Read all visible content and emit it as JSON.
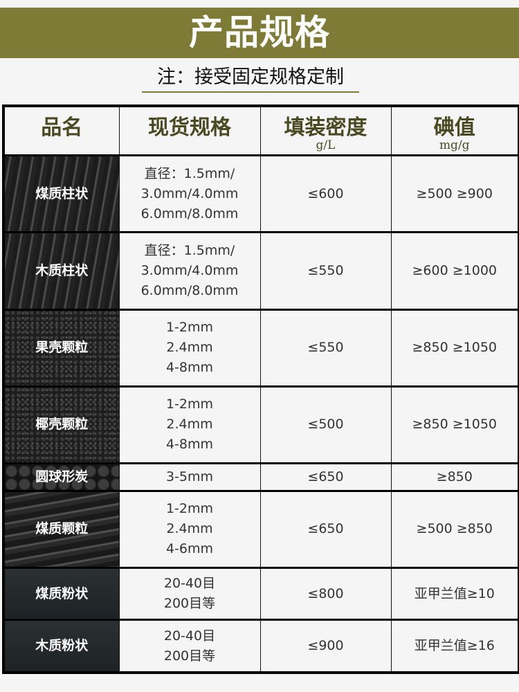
{
  "banner": {
    "title": "产品规格"
  },
  "note": "注：接受固定规格定制",
  "colors": {
    "banner": "#7d7b36",
    "header_text": "#4a4a22"
  },
  "table": {
    "headers": [
      {
        "label": "品名"
      },
      {
        "label": "现货规格"
      },
      {
        "label": "填装密度",
        "unit": "g/L"
      },
      {
        "label": "碘值",
        "unit": "mg/g"
      }
    ],
    "rows": [
      {
        "name": "煤质柱状",
        "spec": [
          "直径：1.5mm/",
          "3.0mm/4.0mm",
          "6.0mm/8.0mm"
        ],
        "density": "≤600",
        "iodine": "≥500  ≥900"
      },
      {
        "name": "木质柱状",
        "spec": [
          "直径：1.5mm/",
          "3.0mm/4.0mm",
          "6.0mm/8.0mm"
        ],
        "density": "≤550",
        "iodine": "≥600  ≥1000"
      },
      {
        "name": "果壳颗粒",
        "spec": [
          "1-2mm",
          "2.4mm",
          "4-8mm"
        ],
        "density": "≤550",
        "iodine": "≥850  ≥1050"
      },
      {
        "name": "椰壳颗粒",
        "spec": [
          "1-2mm",
          "2.4mm",
          "4-8mm"
        ],
        "density": "≤500",
        "iodine": "≥850  ≥1050"
      },
      {
        "name": "圆球形炭",
        "spec": [
          "3-5mm"
        ],
        "density": "≤650",
        "iodine": "≥850"
      },
      {
        "name": "煤质颗粒",
        "spec": [
          "1-2mm",
          "2.4mm",
          "4-6mm"
        ],
        "density": "≤650",
        "iodine": "≥500  ≥850"
      },
      {
        "name": "煤质粉状",
        "spec": [
          "20-40目",
          "200目等"
        ],
        "density": "≤800",
        "iodine": "亚甲兰值≥10"
      },
      {
        "name": "木质粉状",
        "spec": [
          "20-40目",
          "200目等"
        ],
        "density": "≤900",
        "iodine": "亚甲兰值≥16"
      }
    ]
  }
}
